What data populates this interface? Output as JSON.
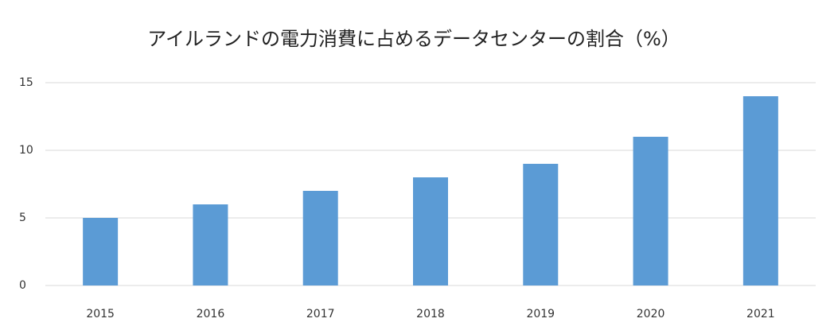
{
  "chart_data": {
    "type": "bar",
    "title": "アイルランドの電力消費に占めるデータセンターの割合（%）",
    "categories": [
      "2015",
      "2016",
      "2017",
      "2018",
      "2019",
      "2020",
      "2021"
    ],
    "values": [
      5,
      6,
      7,
      8,
      9,
      11,
      14
    ],
    "color": "#5b9bd5",
    "ylim": [
      0,
      15
    ],
    "yticks": [
      0,
      5,
      10,
      15
    ],
    "grid": true
  }
}
